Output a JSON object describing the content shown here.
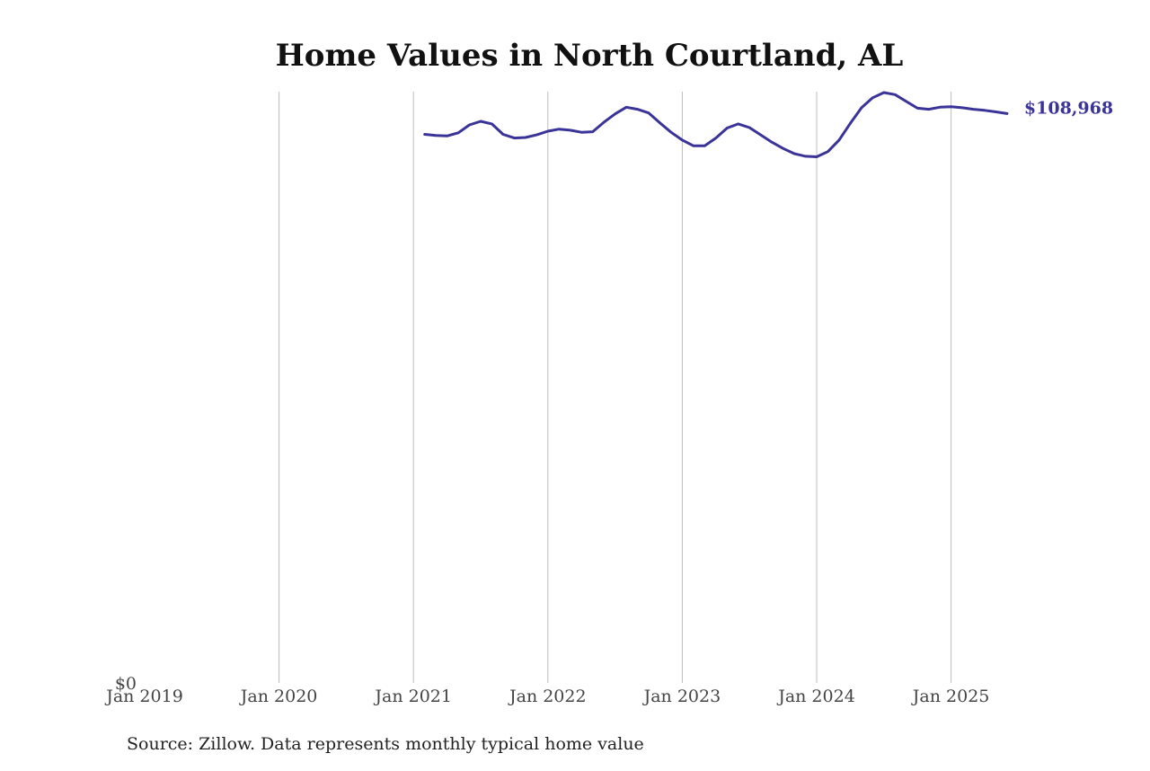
{
  "chart_data": {
    "type": "line",
    "title": "Home Values in North Courtland, AL",
    "xlabel": "",
    "ylabel": "",
    "x_ticks": [
      "Jan 2019",
      "Jan 2020",
      "Jan 2021",
      "Jan 2022",
      "Jan 2023",
      "Jan 2024",
      "Jan 2025"
    ],
    "y_ticks": [
      {
        "value": 0,
        "label": "$0"
      }
    ],
    "xlim": [
      "2019-01",
      "2025-09"
    ],
    "ylim": [
      0,
      113000
    ],
    "grid": {
      "vertical": true,
      "horizontal": false
    },
    "line_color": "#3a3398",
    "end_label": "$108,968",
    "series": [
      {
        "x": [
          "2021-02",
          "2021-03",
          "2021-04",
          "2021-05",
          "2021-06",
          "2021-07",
          "2021-08",
          "2021-09",
          "2021-10",
          "2021-11",
          "2021-12",
          "2022-01",
          "2022-02",
          "2022-03",
          "2022-04",
          "2022-05",
          "2022-06",
          "2022-07",
          "2022-08",
          "2022-09",
          "2022-10",
          "2022-11",
          "2022-12",
          "2023-01",
          "2023-02",
          "2023-03",
          "2023-04",
          "2023-05",
          "2023-06",
          "2023-07",
          "2023-08",
          "2023-09",
          "2023-10",
          "2023-11",
          "2023-12",
          "2024-01",
          "2024-02",
          "2024-03",
          "2024-04",
          "2024-05",
          "2024-06",
          "2024-07",
          "2024-08",
          "2024-09",
          "2024-10",
          "2024-11",
          "2024-12",
          "2025-01",
          "2025-02",
          "2025-03",
          "2025-04",
          "2025-05",
          "2025-06"
        ],
        "values": [
          105000,
          104800,
          104700,
          105300,
          106800,
          107500,
          107000,
          105000,
          104300,
          104400,
          104900,
          105600,
          106000,
          105800,
          105400,
          105500,
          107300,
          108900,
          110200,
          109800,
          109100,
          107200,
          105400,
          103900,
          102800,
          102800,
          104300,
          106200,
          107000,
          106300,
          104900,
          103500,
          102300,
          101300,
          100800,
          100700,
          101700,
          103900,
          107100,
          110100,
          112000,
          113000,
          112600,
          111300,
          110000,
          109800,
          110200,
          110300,
          110100,
          109800,
          109600,
          109300,
          108968
        ]
      }
    ],
    "source": "Source: Zillow. Data represents monthly typical home value"
  }
}
